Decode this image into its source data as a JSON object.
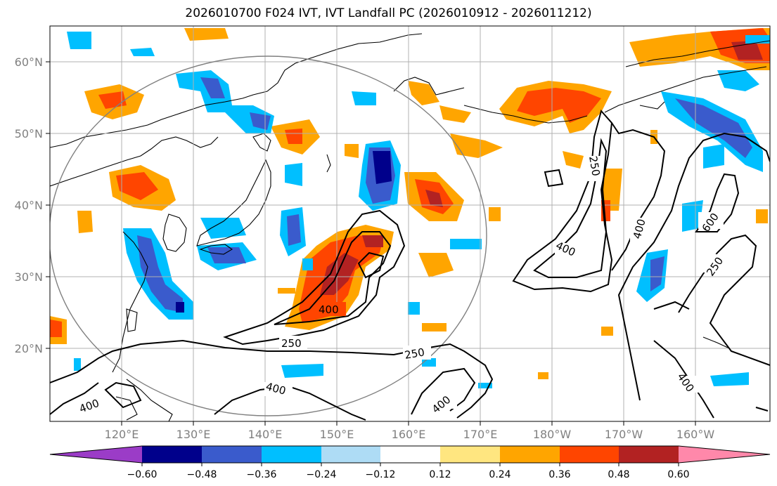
{
  "title": "2026010700 F024 IVT, IVT Landfall PC (2026010912 - 2026011212)",
  "map": {
    "lon_labels": [
      "120°E",
      "130°E",
      "140°E",
      "150°E",
      "160°E",
      "170°E",
      "180°W",
      "170°W",
      "160°W"
    ],
    "lat_labels": [
      "20°N",
      "30°N",
      "40°N",
      "50°N",
      "60°N"
    ],
    "contour_labels": [
      "400",
      "250",
      "400",
      "400",
      "250",
      "400",
      "250",
      "400",
      "400",
      "600"
    ]
  },
  "colorbar": {
    "ticks": [
      "−0.60",
      "−0.48",
      "−0.36",
      "−0.24",
      "−0.12",
      "0.12",
      "0.24",
      "0.36",
      "0.48",
      "0.60"
    ],
    "colors": [
      "#9b3cc7",
      "#00008b",
      "#3a5bcc",
      "#00bfff",
      "#aedcf5",
      "#ffffff",
      "#ffe680",
      "#ffa500",
      "#ff4500",
      "#b22222",
      "#ff88aa"
    ]
  }
}
